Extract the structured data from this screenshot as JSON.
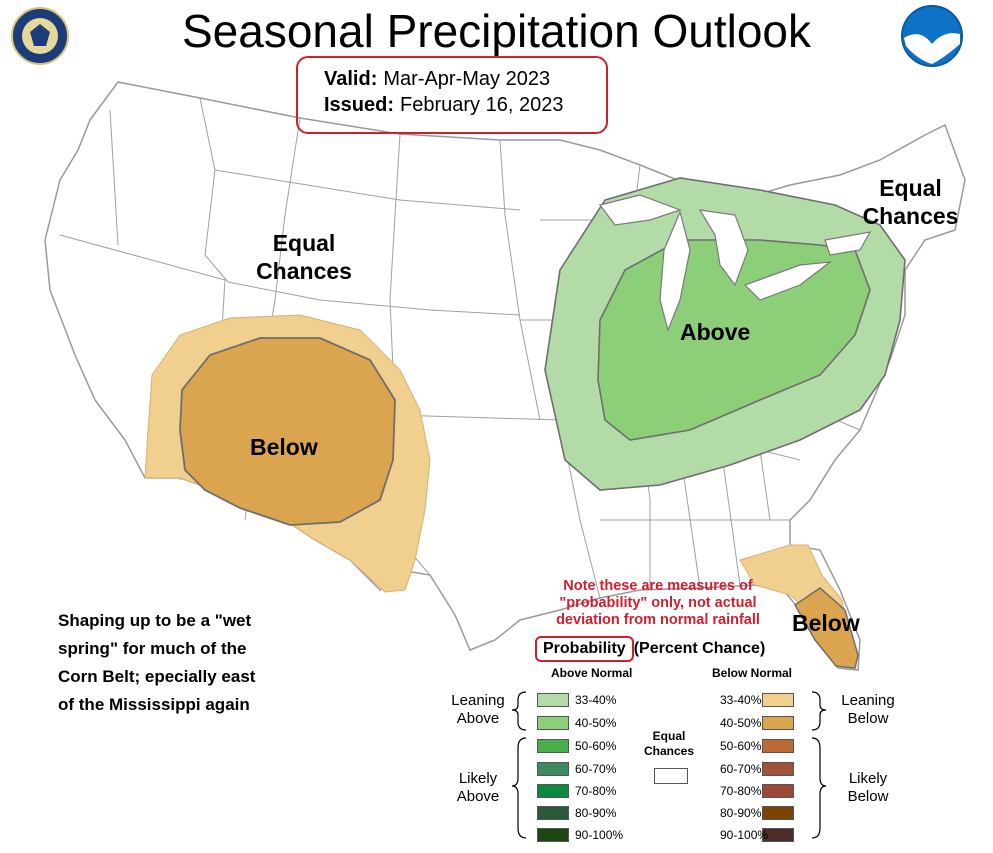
{
  "header": {
    "title": "Seasonal Precipitation Outlook",
    "valid_label": "Valid:",
    "valid_value": "Mar-Apr-May 2023",
    "issued_label": "Issued:",
    "issued_value": "February 16, 2023"
  },
  "logos": {
    "left": "doc-seal-icon",
    "right": "noaa-logo-icon"
  },
  "map_labels": {
    "equal_chances_west": [
      "Equal",
      "Chances"
    ],
    "equal_chances_northeast": [
      "Equal",
      "Chances"
    ],
    "below_southwest": "Below",
    "above_east": "Above",
    "below_florida": "Below"
  },
  "commentary": [
    "Shaping up to be a \"wet",
    "spring\" for much of the",
    "Corn Belt; epecially east",
    "of the Mississippi again"
  ],
  "note": [
    "Note these are measures of",
    "\"probability\" only, not actual",
    "deviation from normal rainfall"
  ],
  "legend": {
    "title": "Probability",
    "subtitle": "(Percent Chance)",
    "above_header": "Above Normal",
    "below_header": "Below Normal",
    "equal_label": [
      "Equal",
      "Chances"
    ],
    "leaning_above": [
      "Leaning",
      "Above"
    ],
    "likely_above": [
      "Likely",
      "Above"
    ],
    "leaning_below": [
      "Leaning",
      "Below"
    ],
    "likely_below": [
      "Likely",
      "Below"
    ],
    "above": [
      {
        "label": "33-40%",
        "color": "#b2dba8"
      },
      {
        "label": "40-50%",
        "color": "#8ccf78"
      },
      {
        "label": "50-60%",
        "color": "#4aae4a"
      },
      {
        "label": "60-70%",
        "color": "#3c8a5e"
      },
      {
        "label": "70-80%",
        "color": "#0c8a3e"
      },
      {
        "label": "80-90%",
        "color": "#27593a"
      },
      {
        "label": "90-100%",
        "color": "#1e4612"
      }
    ],
    "below": [
      {
        "label": "33-40%",
        "color": "#f1cf8e"
      },
      {
        "label": "40-50%",
        "color": "#dba550"
      },
      {
        "label": "50-60%",
        "color": "#bb6a36"
      },
      {
        "label": "60-70%",
        "color": "#a25139"
      },
      {
        "label": "70-80%",
        "color": "#9a4a36"
      },
      {
        "label": "80-90%",
        "color": "#7a4406"
      },
      {
        "label": "90-100%",
        "color": "#4b2e2c"
      }
    ]
  },
  "colors": {
    "valid_box_border": "#d01f2f",
    "note_text": "#d01f2f",
    "above_33_40": "#b2dba8",
    "above_40_50": "#8ccf78",
    "below_33_40": "#f1cf8e",
    "below_40_50": "#dba550"
  }
}
